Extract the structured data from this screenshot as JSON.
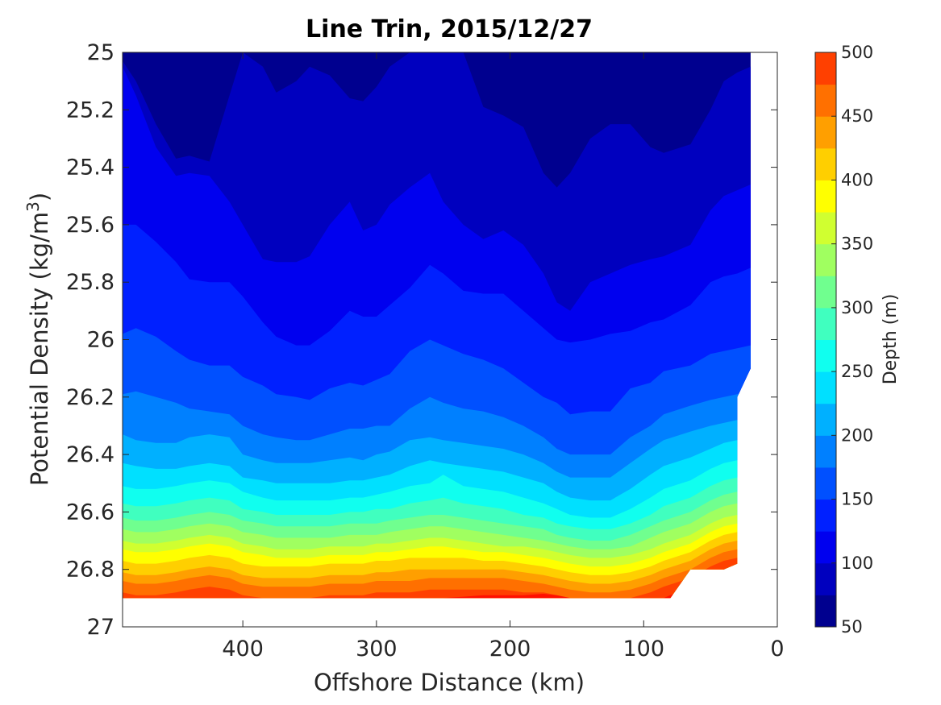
{
  "chart_data": {
    "type": "heatmap",
    "subtype": "filled-contour",
    "title": "Line Trin, 2015/12/27",
    "xlabel": "Offshore Distance (km)",
    "ylabel_prefix": "Potential Density (kg/m",
    "ylabel_superscript": "3",
    "ylabel_suffix": ")",
    "xlim": [
      490,
      0
    ],
    "ylim": [
      25,
      27
    ],
    "y_reversed": true,
    "x_reversed": true,
    "x_ticks": [
      400,
      300,
      200,
      100,
      0
    ],
    "y_ticks": [
      25,
      25.2,
      25.4,
      25.6,
      25.8,
      26,
      26.2,
      26.4,
      26.6,
      26.8,
      27
    ],
    "x_tick_labels": [
      "400",
      "300",
      "200",
      "100",
      "0"
    ],
    "y_tick_labels": [
      "25",
      "25.2",
      "25.4",
      "25.6",
      "25.8",
      "26",
      "26.2",
      "26.4",
      "26.6",
      "26.8",
      "27"
    ],
    "colorbar": {
      "label": "Depth (m)",
      "range": [
        50,
        500
      ],
      "step": 25,
      "ticks": [
        50,
        100,
        150,
        200,
        250,
        300,
        350,
        400,
        450,
        500
      ],
      "tick_labels": [
        "50",
        "100",
        "150",
        "200",
        "250",
        "300",
        "350",
        "400",
        "450",
        "500"
      ],
      "colormap": "jet",
      "colors": [
        "#00008f",
        "#0000bf",
        "#0000ef",
        "#0020ff",
        "#0050ff",
        "#0080ff",
        "#00b0ff",
        "#00e0ff",
        "#10ffef",
        "#40ffbf",
        "#70ff8f",
        "#a0ff60",
        "#d0ff30",
        "#ffff00",
        "#ffcf00",
        "#ff9f00",
        "#ff7000",
        "#ff4000",
        "#ff1000",
        "#df0000",
        "#af0000"
      ]
    },
    "x_nodes": [
      490,
      480,
      465,
      450,
      440,
      425,
      410,
      400,
      385,
      375,
      360,
      350,
      335,
      320,
      310,
      300,
      290,
      275,
      260,
      250,
      235,
      220,
      205,
      190,
      175,
      165,
      155,
      140,
      125,
      110,
      95,
      85,
      65,
      50,
      40,
      30,
      20
    ],
    "contour_boundaries": [
      {
        "level": 75,
        "y": [
          25.03,
          25.1,
          25.25,
          25.37,
          25.36,
          25.38,
          25.15,
          25.0,
          25.05,
          25.14,
          25.1,
          25.05,
          25.08,
          25.16,
          25.17,
          25.12,
          25.05,
          25.0,
          25.0,
          25.0,
          25.0,
          25.19,
          25.22,
          25.26,
          25.42,
          25.47,
          25.42,
          25.3,
          25.25,
          25.25,
          25.33,
          25.35,
          25.32,
          25.2,
          25.1,
          25.07,
          25.05
        ]
      },
      {
        "level": 100,
        "y": [
          25.05,
          25.15,
          25.33,
          25.43,
          25.42,
          25.43,
          25.52,
          25.6,
          25.72,
          25.73,
          25.73,
          25.71,
          25.6,
          25.52,
          25.62,
          25.6,
          25.53,
          25.47,
          25.42,
          25.52,
          25.6,
          25.65,
          25.62,
          25.67,
          25.77,
          25.87,
          25.9,
          25.8,
          25.77,
          25.74,
          25.72,
          25.71,
          25.67,
          25.55,
          25.5,
          25.48,
          25.46
        ]
      },
      {
        "level": 125,
        "y": [
          25.6,
          25.6,
          25.66,
          25.73,
          25.79,
          25.8,
          25.8,
          25.85,
          25.94,
          25.99,
          26.02,
          26.02,
          25.97,
          25.9,
          25.92,
          25.92,
          25.88,
          25.82,
          25.74,
          25.77,
          25.83,
          25.84,
          25.84,
          25.9,
          25.96,
          26.0,
          26.01,
          26.0,
          25.98,
          25.97,
          25.94,
          25.93,
          25.88,
          25.8,
          25.78,
          25.77,
          25.75
        ]
      },
      {
        "level": 150,
        "y": [
          25.98,
          25.96,
          25.99,
          26.04,
          26.07,
          26.09,
          26.09,
          26.13,
          26.16,
          26.19,
          26.2,
          26.21,
          26.17,
          26.15,
          26.16,
          26.14,
          26.12,
          26.04,
          26.0,
          26.02,
          26.05,
          26.07,
          26.1,
          26.15,
          26.2,
          26.22,
          26.26,
          26.25,
          26.25,
          26.17,
          26.15,
          26.11,
          26.09,
          26.05,
          26.04,
          26.03,
          26.02
        ]
      },
      {
        "level": 175,
        "y": [
          26.19,
          26.18,
          26.2,
          26.22,
          26.24,
          26.25,
          26.26,
          26.3,
          26.33,
          26.34,
          26.35,
          26.35,
          26.33,
          26.31,
          26.31,
          26.3,
          26.3,
          26.24,
          26.2,
          26.22,
          26.24,
          26.25,
          26.27,
          26.3,
          26.34,
          26.38,
          26.4,
          26.4,
          26.4,
          26.34,
          26.3,
          26.26,
          26.23,
          26.21,
          26.2,
          26.19,
          26.18
        ]
      },
      {
        "level": 200,
        "y": [
          26.33,
          26.35,
          26.36,
          26.36,
          26.34,
          26.33,
          26.34,
          26.4,
          26.42,
          26.43,
          26.43,
          26.43,
          26.42,
          26.41,
          26.42,
          26.4,
          26.39,
          26.35,
          26.34,
          26.35,
          26.36,
          26.37,
          26.38,
          26.4,
          26.43,
          26.46,
          26.48,
          26.48,
          26.48,
          26.43,
          26.38,
          26.35,
          26.32,
          26.3,
          26.29,
          26.28,
          26.27
        ]
      },
      {
        "level": 225,
        "y": [
          26.43,
          26.44,
          26.45,
          26.45,
          26.44,
          26.43,
          26.44,
          26.48,
          26.49,
          26.5,
          26.5,
          26.5,
          26.5,
          26.49,
          26.49,
          26.48,
          26.47,
          26.44,
          26.42,
          26.43,
          26.44,
          26.45,
          26.46,
          26.48,
          26.5,
          26.53,
          26.55,
          26.56,
          26.56,
          26.52,
          26.47,
          26.44,
          26.41,
          26.38,
          26.36,
          26.35,
          26.34
        ]
      },
      {
        "level": 250,
        "y": [
          26.51,
          26.52,
          26.52,
          26.51,
          26.5,
          26.49,
          26.5,
          26.53,
          26.55,
          26.56,
          26.56,
          26.56,
          26.56,
          26.55,
          26.55,
          26.54,
          26.53,
          26.51,
          26.5,
          26.47,
          26.51,
          26.52,
          26.53,
          26.55,
          26.57,
          26.59,
          26.61,
          26.62,
          26.62,
          26.59,
          26.55,
          26.52,
          26.49,
          26.45,
          26.43,
          26.42,
          26.41
        ]
      },
      {
        "level": 275,
        "y": [
          26.57,
          26.58,
          26.58,
          26.57,
          26.56,
          26.55,
          26.56,
          26.59,
          26.6,
          26.61,
          26.61,
          26.61,
          26.61,
          26.6,
          26.6,
          26.59,
          26.59,
          26.57,
          26.56,
          26.55,
          26.57,
          26.58,
          26.59,
          26.61,
          26.62,
          26.64,
          26.65,
          26.66,
          26.66,
          26.64,
          26.61,
          26.58,
          26.55,
          26.51,
          26.49,
          26.48,
          26.47
        ]
      },
      {
        "level": 300,
        "y": [
          26.62,
          26.63,
          26.63,
          26.62,
          26.61,
          26.6,
          26.61,
          26.63,
          26.64,
          26.65,
          26.65,
          26.65,
          26.65,
          26.64,
          26.64,
          26.64,
          26.63,
          26.62,
          26.61,
          26.61,
          26.62,
          26.63,
          26.64,
          26.65,
          26.66,
          26.68,
          26.69,
          26.7,
          26.7,
          26.68,
          26.65,
          26.63,
          26.6,
          26.56,
          26.54,
          26.53,
          26.52
        ]
      },
      {
        "level": 325,
        "y": [
          26.66,
          26.67,
          26.67,
          26.66,
          26.65,
          26.64,
          26.65,
          26.67,
          26.68,
          26.69,
          26.69,
          26.69,
          26.69,
          26.68,
          26.68,
          26.68,
          26.67,
          26.66,
          26.65,
          26.65,
          26.66,
          26.67,
          26.68,
          26.69,
          26.7,
          26.71,
          26.72,
          26.73,
          26.73,
          26.72,
          26.69,
          26.67,
          26.64,
          26.6,
          26.58,
          26.57,
          26.56
        ]
      },
      {
        "level": 350,
        "y": [
          26.7,
          26.71,
          26.71,
          26.7,
          26.69,
          26.68,
          26.69,
          26.71,
          26.72,
          26.73,
          26.73,
          26.73,
          26.72,
          26.72,
          26.72,
          26.71,
          26.71,
          26.7,
          26.69,
          26.69,
          26.7,
          26.71,
          26.72,
          26.72,
          26.73,
          26.74,
          26.75,
          26.76,
          26.76,
          26.75,
          26.73,
          26.71,
          26.68,
          26.64,
          26.62,
          26.61,
          26.6
        ]
      },
      {
        "level": 375,
        "y": [
          26.73,
          26.74,
          26.74,
          26.73,
          26.72,
          26.71,
          26.72,
          26.74,
          26.75,
          26.76,
          26.76,
          26.76,
          26.75,
          26.75,
          26.75,
          26.74,
          26.74,
          26.73,
          26.72,
          26.72,
          26.73,
          26.74,
          26.74,
          26.75,
          26.76,
          26.77,
          26.78,
          26.79,
          26.79,
          26.78,
          26.76,
          26.74,
          26.71,
          26.67,
          26.65,
          26.64,
          26.63
        ]
      },
      {
        "level": 400,
        "y": [
          26.77,
          26.78,
          26.78,
          26.77,
          26.76,
          26.75,
          26.76,
          26.78,
          26.79,
          26.79,
          26.79,
          26.79,
          26.78,
          26.78,
          26.78,
          26.77,
          26.77,
          26.76,
          26.76,
          26.76,
          26.76,
          26.77,
          26.77,
          26.78,
          26.79,
          26.8,
          26.81,
          26.82,
          26.82,
          26.81,
          26.79,
          26.77,
          26.74,
          26.7,
          26.68,
          26.67,
          26.66
        ]
      },
      {
        "level": 425,
        "y": [
          26.81,
          26.82,
          26.82,
          26.81,
          26.8,
          26.79,
          26.8,
          26.82,
          26.83,
          26.83,
          26.83,
          26.83,
          26.82,
          26.82,
          26.82,
          26.81,
          26.81,
          26.8,
          26.8,
          26.8,
          26.8,
          26.8,
          26.8,
          26.81,
          26.82,
          26.83,
          26.84,
          26.85,
          26.85,
          26.84,
          26.82,
          26.8,
          26.77,
          26.73,
          26.71,
          26.7,
          26.69
        ]
      },
      {
        "level": 450,
        "y": [
          26.84,
          26.85,
          26.85,
          26.84,
          26.83,
          26.82,
          26.83,
          26.85,
          26.86,
          26.86,
          26.86,
          26.86,
          26.85,
          26.85,
          26.85,
          26.84,
          26.84,
          26.84,
          26.83,
          26.83,
          26.83,
          26.83,
          26.83,
          26.84,
          26.85,
          26.86,
          26.87,
          26.88,
          26.88,
          26.87,
          26.85,
          26.83,
          26.8,
          26.76,
          26.74,
          26.73,
          26.72
        ]
      },
      {
        "level": 475,
        "y": [
          26.88,
          26.89,
          26.89,
          26.88,
          26.87,
          26.86,
          26.87,
          26.89,
          26.9,
          26.9,
          26.9,
          26.9,
          26.89,
          26.89,
          26.89,
          26.88,
          26.88,
          26.88,
          26.87,
          26.87,
          26.87,
          26.87,
          26.87,
          26.88,
          26.88,
          26.89,
          26.9,
          26.9,
          26.9,
          26.9,
          26.88,
          26.86,
          26.83,
          26.79,
          26.77,
          26.76,
          26.75
        ]
      },
      {
        "level": 500,
        "y": [
          26.9,
          26.9,
          26.9,
          26.9,
          26.9,
          26.9,
          26.9,
          26.9,
          26.9,
          26.9,
          26.9,
          26.9,
          26.9,
          26.9,
          26.9,
          26.9,
          26.9,
          26.9,
          26.9,
          26.9,
          26.895,
          26.89,
          26.89,
          26.89,
          26.885,
          26.89,
          26.9,
          26.9,
          26.9,
          26.9,
          26.9,
          26.9,
          26.86,
          26.82,
          26.8,
          26.79,
          26.78
        ]
      }
    ],
    "data_extent_offshore_bound": [
      {
        "x": 20,
        "y": 25.0
      },
      {
        "x": 20,
        "y": 26.1
      },
      {
        "x": 30,
        "y": 26.2
      },
      {
        "x": 30,
        "y": 26.78
      },
      {
        "x": 40,
        "y": 26.8
      },
      {
        "x": 65,
        "y": 26.8
      },
      {
        "x": 80,
        "y": 26.9
      },
      {
        "x": 490,
        "y": 26.9
      }
    ]
  }
}
